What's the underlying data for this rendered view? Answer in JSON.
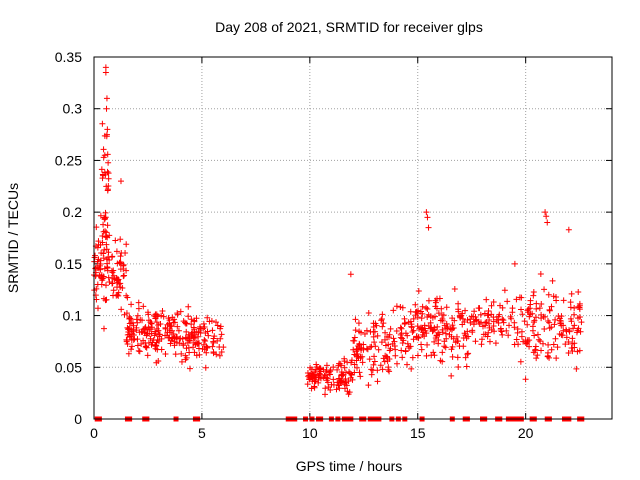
{
  "chart_data": {
    "type": "scatter",
    "title": "Day 208 of 2021, SRMTID for receiver glps",
    "xlabel": "GPS time / hours",
    "ylabel": "SRMTID / TECUs",
    "xlim": [
      0,
      24
    ],
    "ylim": [
      0,
      0.35
    ],
    "x_ticks": [
      0,
      5,
      10,
      15,
      20
    ],
    "x_tick_labels": [
      "0",
      "5",
      "10",
      "15",
      "20"
    ],
    "y_ticks": [
      0,
      0.05,
      0.1,
      0.15,
      0.2,
      0.25,
      0.3,
      0.35
    ],
    "y_tick_labels": [
      "0",
      "0.05",
      "0.1",
      "0.15",
      "0.2",
      "0.25",
      "0.3",
      "0.35"
    ],
    "grid": true,
    "marker": "+",
    "colors": {
      "series": "#ff0000",
      "grid": "#a0a0a0",
      "axis": "#000000"
    },
    "clusters": [
      {
        "x_start": 0.0,
        "x_end": 0.6,
        "center": 0.15,
        "spread": 0.04,
        "count": 60
      },
      {
        "x_start": 0.3,
        "x_end": 0.7,
        "center": 0.22,
        "spread": 0.05,
        "count": 25
      },
      {
        "x_start": 0.6,
        "x_end": 1.5,
        "center": 0.14,
        "spread": 0.035,
        "count": 60
      },
      {
        "x_start": 1.5,
        "x_end": 3.5,
        "center": 0.085,
        "spread": 0.02,
        "count": 130
      },
      {
        "x_start": 3.5,
        "x_end": 6.0,
        "center": 0.08,
        "spread": 0.02,
        "count": 130
      },
      {
        "x_start": 9.9,
        "x_end": 12.0,
        "center": 0.042,
        "spread": 0.012,
        "count": 110
      },
      {
        "x_start": 12.0,
        "x_end": 14.0,
        "center": 0.07,
        "spread": 0.025,
        "count": 100
      },
      {
        "x_start": 14.0,
        "x_end": 17.5,
        "center": 0.085,
        "spread": 0.025,
        "count": 180
      },
      {
        "x_start": 17.5,
        "x_end": 19.5,
        "center": 0.095,
        "spread": 0.02,
        "count": 70
      },
      {
        "x_start": 19.5,
        "x_end": 22.6,
        "center": 0.09,
        "spread": 0.03,
        "count": 140
      }
    ],
    "spikes": [
      {
        "x": 0.55,
        "y": 0.34
      },
      {
        "x": 0.55,
        "y": 0.335
      },
      {
        "x": 0.6,
        "y": 0.31
      },
      {
        "x": 0.58,
        "y": 0.3
      },
      {
        "x": 0.62,
        "y": 0.28
      },
      {
        "x": 0.6,
        "y": 0.275
      },
      {
        "x": 0.5,
        "y": 0.255
      },
      {
        "x": 0.45,
        "y": 0.253
      },
      {
        "x": 1.25,
        "y": 0.23
      },
      {
        "x": 15.4,
        "y": 0.2
      },
      {
        "x": 15.45,
        "y": 0.195
      },
      {
        "x": 15.5,
        "y": 0.185
      },
      {
        "x": 20.9,
        "y": 0.2
      },
      {
        "x": 20.95,
        "y": 0.196
      },
      {
        "x": 21.0,
        "y": 0.19
      },
      {
        "x": 19.5,
        "y": 0.15
      },
      {
        "x": 22.0,
        "y": 0.183
      },
      {
        "x": 11.9,
        "y": 0.14
      }
    ],
    "zero_markers_x": [
      0.15,
      0.25,
      1.55,
      1.65,
      2.35,
      2.45,
      3.8,
      4.7,
      4.8,
      9.0,
      9.1,
      9.3,
      9.8,
      10.1,
      10.4,
      10.5,
      11.0,
      11.3,
      11.6,
      11.8,
      11.9,
      12.4,
      12.5,
      12.8,
      13.0,
      13.2,
      13.8,
      14.1,
      14.4,
      15.2,
      16.6,
      17.2,
      17.3,
      18.0,
      18.1,
      18.7,
      18.8,
      19.2,
      19.3,
      19.5,
      19.6,
      19.8,
      20.3,
      20.4,
      21.0,
      21.1,
      21.8,
      22.0,
      22.5,
      22.6
    ]
  }
}
